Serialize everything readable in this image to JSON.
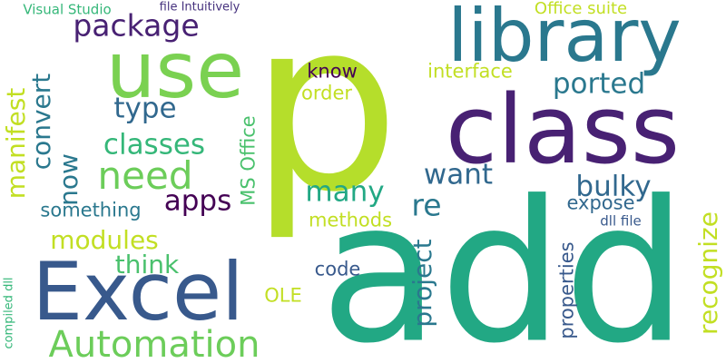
{
  "words": [
    {
      "text": "p",
      "color": "#b5de2b"
    },
    {
      "text": "add",
      "color": "#22a884"
    },
    {
      "text": "class",
      "color": "#482173"
    },
    {
      "text": "library",
      "color": "#2a788e"
    },
    {
      "text": "use",
      "color": "#7ad151"
    },
    {
      "text": "Excel",
      "color": "#38598c"
    },
    {
      "text": "Automation",
      "color": "#6ccd5a"
    },
    {
      "text": "need",
      "color": "#6ccd5a"
    },
    {
      "text": "package",
      "color": "#482173"
    },
    {
      "text": "classes",
      "color": "#35b779"
    },
    {
      "text": "manifest",
      "color": "#c2df23"
    },
    {
      "text": "convert",
      "color": "#2a788e"
    },
    {
      "text": "now",
      "color": "#2a788e"
    },
    {
      "text": "type",
      "color": "#31688e"
    },
    {
      "text": "apps",
      "color": "#440154"
    },
    {
      "text": "many",
      "color": "#22a884"
    },
    {
      "text": "want",
      "color": "#31688e"
    },
    {
      "text": "bulky",
      "color": "#31688e"
    },
    {
      "text": "re",
      "color": "#2a788e"
    },
    {
      "text": "ported",
      "color": "#2a788e"
    },
    {
      "text": "interface",
      "color": "#c2df23"
    },
    {
      "text": "order",
      "color": "#c2df23"
    },
    {
      "text": "know",
      "color": "#440154"
    },
    {
      "text": "modules",
      "color": "#c2df23"
    },
    {
      "text": "think",
      "color": "#4ac16d"
    },
    {
      "text": "something",
      "color": "#2a788e"
    },
    {
      "text": "MS Office",
      "color": "#4ac16d"
    },
    {
      "text": "methods",
      "color": "#c2df23"
    },
    {
      "text": "OLE",
      "color": "#c2df23"
    },
    {
      "text": "code",
      "color": "#38598c"
    },
    {
      "text": "project",
      "color": "#2a788e"
    },
    {
      "text": "recognize",
      "color": "#c2df23"
    },
    {
      "text": "properties",
      "color": "#38598c"
    },
    {
      "text": "expose",
      "color": "#31688e"
    },
    {
      "text": "dll file",
      "color": "#38598c"
    },
    {
      "text": "Office suite",
      "color": "#c2df23"
    },
    {
      "text": "file Intuitively",
      "color": "#46327e"
    },
    {
      "text": "Visual Studio",
      "color": "#35b779"
    },
    {
      "text": "compiled dll",
      "color": "#35b779"
    }
  ]
}
